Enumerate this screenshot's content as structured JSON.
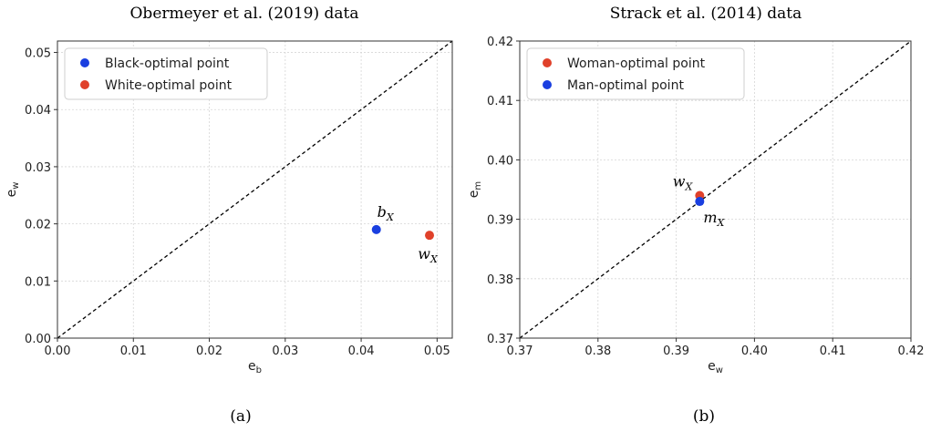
{
  "chart_data": [
    {
      "type": "scatter",
      "title": "Obermeyer et al. (2019) data",
      "xlabel": "e_b",
      "ylabel": "e_w",
      "xlim": [
        0.0,
        0.052
      ],
      "ylim": [
        0.0,
        0.052
      ],
      "xticks": [
        0.0,
        0.01,
        0.02,
        0.03,
        0.04,
        0.05
      ],
      "yticks": [
        0.0,
        0.01,
        0.02,
        0.03,
        0.04,
        0.05
      ],
      "tick_decimals": 2,
      "grid": true,
      "reference_line": "y = x (dashed)",
      "legend_position": "top-left",
      "series": [
        {
          "name": "Black-optimal point",
          "color": "#1a3fe0",
          "points": [
            {
              "x": 0.042,
              "y": 0.019,
              "label": "b",
              "sub": "X",
              "label_pos": "above"
            }
          ]
        },
        {
          "name": "White-optimal point",
          "color": "#e0412a",
          "points": [
            {
              "x": 0.049,
              "y": 0.018,
              "label": "w",
              "sub": "X",
              "label_pos": "below"
            }
          ]
        }
      ],
      "caption": "(a)"
    },
    {
      "type": "scatter",
      "title": "Strack et al. (2014) data",
      "xlabel": "e_w",
      "ylabel": "e_m",
      "xlim": [
        0.37,
        0.42
      ],
      "ylim": [
        0.37,
        0.42
      ],
      "xticks": [
        0.37,
        0.38,
        0.39,
        0.4,
        0.41,
        0.42
      ],
      "yticks": [
        0.37,
        0.38,
        0.39,
        0.4,
        0.41,
        0.42
      ],
      "tick_decimals": 2,
      "grid": true,
      "reference_line": "y = x (dashed)",
      "legend_position": "top-left",
      "series": [
        {
          "name": "Woman-optimal point",
          "color": "#e0412a",
          "points": [
            {
              "x": 0.393,
              "y": 0.394,
              "label": "w",
              "sub": "X",
              "label_pos": "left"
            }
          ]
        },
        {
          "name": "Man-optimal point",
          "color": "#1a3fe0",
          "points": [
            {
              "x": 0.393,
              "y": 0.393,
              "label": "m",
              "sub": "X",
              "label_pos": "right"
            }
          ]
        }
      ],
      "caption": "(b)"
    }
  ]
}
